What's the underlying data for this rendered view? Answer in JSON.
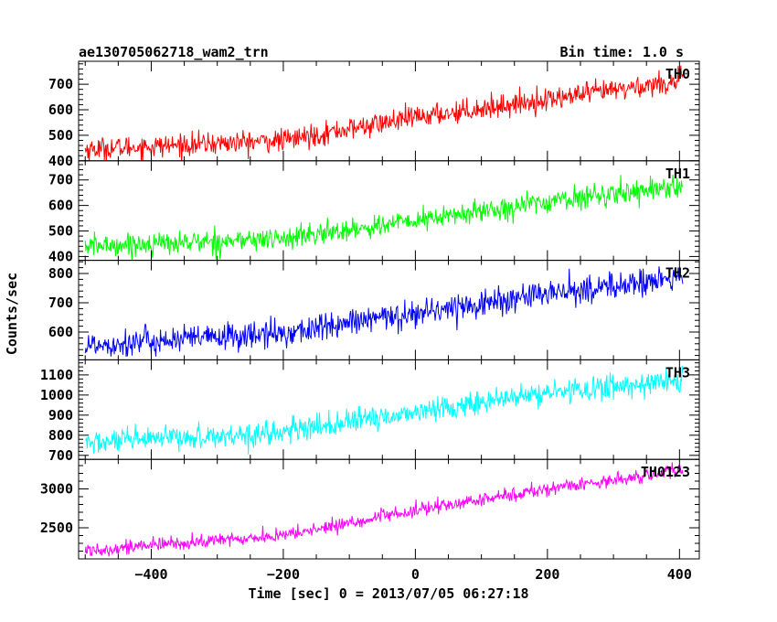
{
  "header": {
    "source_name": "ae130705062718_wam2_trn",
    "bin_time": "Bin time: 1.0 s"
  },
  "chart_data": {
    "type": "line",
    "title": "ae130705062718_wam2_trn",
    "subtitle": "Bin time: 1.0 s",
    "xlabel": "Time [sec] 0 = 2013/07/05 06:27:18",
    "ylabel": "Counts/sec",
    "xlim": [
      -510,
      430
    ],
    "xticks": [
      -400,
      -200,
      0,
      200,
      400
    ],
    "xtick_labels": [
      "−400",
      "−200",
      "0",
      "200",
      "400"
    ],
    "x_start": -500,
    "x_end": 405,
    "x_step": 1,
    "grid": false,
    "legend": "panel labels top-right",
    "panels": [
      {
        "name": "TH0",
        "color": "#ff0000",
        "ylim": [
          400,
          790
        ],
        "yticks": [
          400,
          500,
          600,
          700
        ],
        "ytick_labels": [
          "400",
          "500",
          "600",
          "700"
        ],
        "trend_points": [
          [
            -500,
            445
          ],
          [
            -200,
            480
          ],
          [
            0,
            570
          ],
          [
            200,
            640
          ],
          [
            405,
            715
          ]
        ],
        "noise": 22
      },
      {
        "name": "TH1",
        "color": "#00ff00",
        "ylim": [
          385,
          775
        ],
        "yticks": [
          400,
          500,
          600,
          700
        ],
        "ytick_labels": [
          "400",
          "500",
          "600",
          "700"
        ],
        "trend_points": [
          [
            -500,
            440
          ],
          [
            -200,
            470
          ],
          [
            0,
            540
          ],
          [
            200,
            615
          ],
          [
            405,
            680
          ]
        ],
        "noise": 22
      },
      {
        "name": "TH2",
        "color": "#0000ff",
        "ylim": [
          505,
          845
        ],
        "yticks": [
          600,
          700,
          800
        ],
        "ytick_labels": [
          "600",
          "700",
          "800"
        ],
        "trend_points": [
          [
            -500,
            555
          ],
          [
            -200,
            595
          ],
          [
            0,
            665
          ],
          [
            200,
            730
          ],
          [
            405,
            785
          ]
        ],
        "noise": 24
      },
      {
        "name": "TH3",
        "color": "#00ffff",
        "ylim": [
          680,
          1175
        ],
        "yticks": [
          700,
          800,
          900,
          1000,
          1100
        ],
        "ytick_labels": [
          "700",
          "800",
          "900",
          "1000",
          "1100"
        ],
        "trend_points": [
          [
            -500,
            760
          ],
          [
            -200,
            815
          ],
          [
            0,
            915
          ],
          [
            200,
            1010
          ],
          [
            405,
            1075
          ]
        ],
        "noise": 30
      },
      {
        "name": "TH0123",
        "color": "#ff00ff",
        "ylim": [
          2100,
          3380
        ],
        "yticks": [
          2500,
          3000
        ],
        "ytick_labels": [
          "2500",
          "3000"
        ],
        "trend_points": [
          [
            -500,
            2210
          ],
          [
            -200,
            2400
          ],
          [
            0,
            2720
          ],
          [
            200,
            3000
          ],
          [
            405,
            3240
          ]
        ],
        "noise": 45
      }
    ]
  }
}
